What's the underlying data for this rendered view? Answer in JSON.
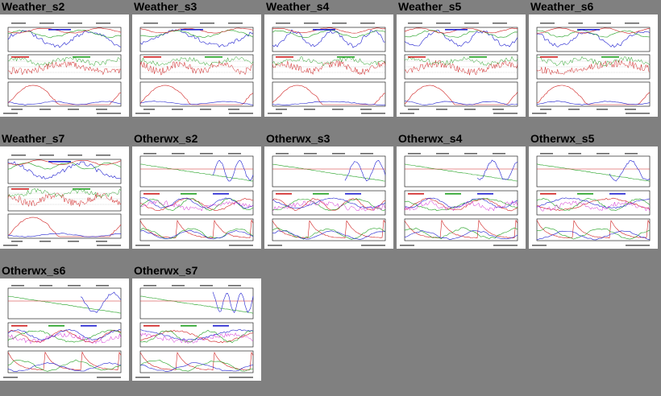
{
  "page": {
    "background": "#808080"
  },
  "colors": {
    "frame": "#000000",
    "blue": "#2020d0",
    "red": "#d02020",
    "green": "#20a020",
    "cyan": "#20a0c0",
    "magenta": "#d020d0",
    "grid": "#888888"
  },
  "tiles": [
    {
      "title": "Weather_s2",
      "kind": "weather",
      "seed": 1
    },
    {
      "title": "Weather_s3",
      "kind": "weather",
      "seed": 2
    },
    {
      "title": "Weather_s4",
      "kind": "weather",
      "seed": 3
    },
    {
      "title": "Weather_s5",
      "kind": "weather",
      "seed": 4
    },
    {
      "title": "Weather_s6",
      "kind": "weather",
      "seed": 5
    },
    {
      "title": "Weather_s7",
      "kind": "weather",
      "seed": 6
    },
    {
      "title": "Otherwx_s2",
      "kind": "otherwx",
      "seed": 7
    },
    {
      "title": "Otherwx_s3",
      "kind": "otherwx",
      "seed": 8
    },
    {
      "title": "Otherwx_s4",
      "kind": "otherwx",
      "seed": 9
    },
    {
      "title": "Otherwx_s5",
      "kind": "otherwx",
      "seed": 10
    },
    {
      "title": "Otherwx_s6",
      "kind": "otherwx",
      "seed": 11
    },
    {
      "title": "Otherwx_s7",
      "kind": "otherwx",
      "seed": 12
    }
  ]
}
